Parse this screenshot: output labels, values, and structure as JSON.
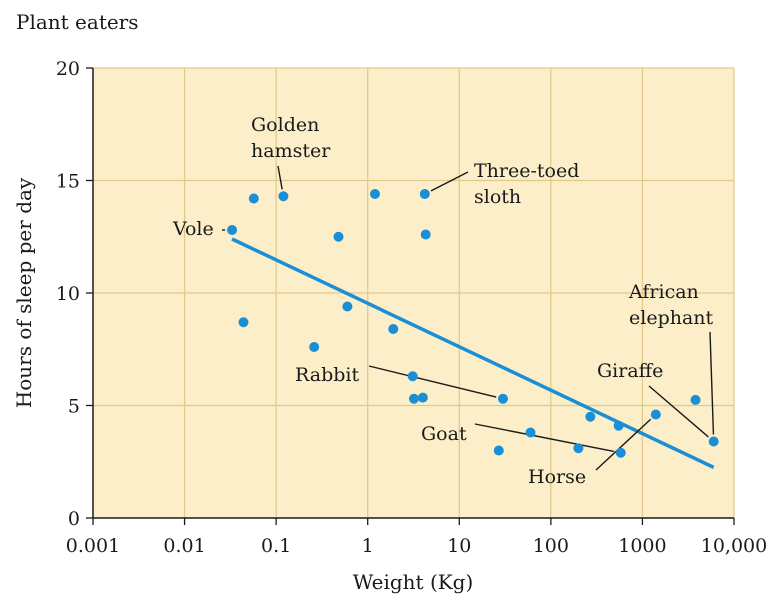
{
  "chart_data": {
    "type": "scatter",
    "title": "Plant eaters",
    "xlabel": "Weight (Kg)",
    "ylabel": "Hours of sleep per day",
    "x_scale": "log",
    "xlim": [
      0.001,
      10000
    ],
    "ylim": [
      0,
      20
    ],
    "x_ticks": [
      {
        "value": 0.001,
        "label": "0.001"
      },
      {
        "value": 0.01,
        "label": "0.01"
      },
      {
        "value": 0.1,
        "label": "0.1"
      },
      {
        "value": 1,
        "label": "1"
      },
      {
        "value": 10,
        "label": "10"
      },
      {
        "value": 100,
        "label": "100"
      },
      {
        "value": 1000,
        "label": "1000"
      },
      {
        "value": 10000,
        "label": "10,000"
      }
    ],
    "y_ticks": [
      {
        "value": 0,
        "label": "0"
      },
      {
        "value": 5,
        "label": "5"
      },
      {
        "value": 10,
        "label": "10"
      },
      {
        "value": 15,
        "label": "15"
      },
      {
        "value": 20,
        "label": "20"
      }
    ],
    "grid": true,
    "colors": {
      "background": "#fbeec8",
      "grid": "#e2c98a",
      "points": "#1a8fd6",
      "fit_line": "#1a8fd6",
      "text": "#1a1a1a"
    },
    "points": [
      {
        "x": 0.033,
        "y": 12.8
      },
      {
        "x": 0.057,
        "y": 14.2
      },
      {
        "x": 0.12,
        "y": 14.3
      },
      {
        "x": 1.2,
        "y": 14.4
      },
      {
        "x": 4.2,
        "y": 14.4
      },
      {
        "x": 0.48,
        "y": 12.5
      },
      {
        "x": 4.3,
        "y": 12.6
      },
      {
        "x": 0.6,
        "y": 9.4
      },
      {
        "x": 0.044,
        "y": 8.7
      },
      {
        "x": 0.26,
        "y": 7.6
      },
      {
        "x": 1.9,
        "y": 8.4
      },
      {
        "x": 3.1,
        "y": 6.3
      },
      {
        "x": 3.2,
        "y": 5.3
      },
      {
        "x": 4.0,
        "y": 5.35
      },
      {
        "x": 30,
        "y": 5.3
      },
      {
        "x": 60,
        "y": 3.8
      },
      {
        "x": 27,
        "y": 3.0
      },
      {
        "x": 200,
        "y": 3.1
      },
      {
        "x": 270,
        "y": 4.5
      },
      {
        "x": 550,
        "y": 4.1
      },
      {
        "x": 580,
        "y": 2.9
      },
      {
        "x": 1400,
        "y": 4.6
      },
      {
        "x": 3800,
        "y": 5.25
      },
      {
        "x": 6000,
        "y": 3.4
      }
    ],
    "fit_line": {
      "x": [
        0.033,
        6000
      ],
      "y": [
        12.4,
        2.25
      ]
    },
    "annotations": [
      {
        "text": "Vole",
        "x": 0.033,
        "y": 12.8
      },
      {
        "text": "Golden",
        "x": 0.12,
        "y": 14.3
      },
      {
        "text": "hamster",
        "x": 0.12,
        "y": 14.3
      },
      {
        "text": "Three-toed",
        "x": 4.2,
        "y": 14.4
      },
      {
        "text": "sloth",
        "x": 4.2,
        "y": 14.4
      },
      {
        "text": "Rabbit",
        "x": 1.9,
        "y": 8.4
      },
      {
        "text": "Goat",
        "x": 30,
        "y": 5.3
      },
      {
        "text": "Horse",
        "x": 580,
        "y": 2.9
      },
      {
        "text": "Giraffe",
        "x": 1400,
        "y": 4.6
      },
      {
        "text": "African",
        "x": 6000,
        "y": 3.4
      },
      {
        "text": "elephant",
        "x": 6000,
        "y": 3.4
      }
    ]
  }
}
